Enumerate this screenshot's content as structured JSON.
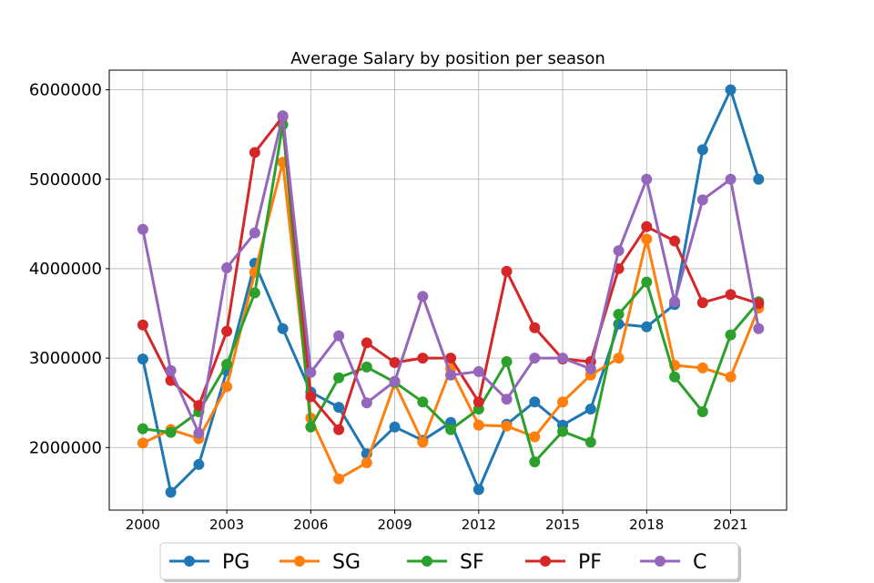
{
  "chart_data": {
    "type": "line",
    "title": "Average Salary by position per season",
    "xlabel": "",
    "ylabel": "",
    "x": [
      2000,
      2001,
      2002,
      2003,
      2004,
      2005,
      2006,
      2007,
      2008,
      2009,
      2010,
      2011,
      2012,
      2013,
      2014,
      2015,
      2016,
      2017,
      2018,
      2019,
      2020,
      2021,
      2022
    ],
    "xticks": [
      2000,
      2003,
      2006,
      2009,
      2012,
      2015,
      2018,
      2021
    ],
    "xtick_labels": [
      "2000",
      "2003",
      "2006",
      "2009",
      "2012",
      "2015",
      "2018",
      "2021"
    ],
    "yticks": [
      2000000,
      3000000,
      4000000,
      5000000,
      6000000
    ],
    "ytick_labels": [
      "2000000",
      "3000000",
      "4000000",
      "5000000",
      "6000000"
    ],
    "xlim": [
      1998.8,
      2023.0
    ],
    "ylim": [
      1300000,
      6220000
    ],
    "grid": true,
    "legend_position": "bottom-center",
    "series": [
      {
        "name": "PG",
        "color": "#1f77b4",
        "values": [
          2990000,
          1500000,
          1810000,
          2860000,
          4060000,
          3330000,
          2620000,
          2450000,
          1930000,
          2230000,
          2080000,
          2280000,
          1530000,
          2260000,
          2510000,
          2250000,
          2430000,
          3380000,
          3350000,
          3600000,
          5330000,
          6000000,
          5000000
        ]
      },
      {
        "name": "SG",
        "color": "#ff7f0e",
        "values": [
          2050000,
          2200000,
          2100000,
          2680000,
          3960000,
          5190000,
          2330000,
          1650000,
          1830000,
          2720000,
          2060000,
          2880000,
          2250000,
          2240000,
          2120000,
          2510000,
          2810000,
          3000000,
          4330000,
          2920000,
          2890000,
          2790000,
          3560000
        ]
      },
      {
        "name": "SF",
        "color": "#2ca02c",
        "values": [
          2210000,
          2170000,
          2400000,
          2930000,
          3730000,
          5610000,
          2230000,
          2780000,
          2900000,
          2730000,
          2510000,
          2200000,
          2430000,
          2960000,
          1840000,
          2180000,
          2060000,
          3490000,
          3850000,
          2790000,
          2400000,
          3260000,
          3630000
        ]
      },
      {
        "name": "PF",
        "color": "#d62728",
        "values": [
          3370000,
          2750000,
          2470000,
          3300000,
          5300000,
          5700000,
          2570000,
          2200000,
          3170000,
          2950000,
          3000000,
          3000000,
          2510000,
          3970000,
          3340000,
          2990000,
          2960000,
          4000000,
          4470000,
          4310000,
          3620000,
          3710000,
          3610000
        ]
      },
      {
        "name": "C",
        "color": "#9467bd",
        "values": [
          4440000,
          2860000,
          2160000,
          4010000,
          4400000,
          5710000,
          2840000,
          3250000,
          2500000,
          2740000,
          3690000,
          2810000,
          2850000,
          2540000,
          3000000,
          3000000,
          2880000,
          4200000,
          5000000,
          3630000,
          4770000,
          5000000,
          3330000
        ]
      }
    ]
  }
}
